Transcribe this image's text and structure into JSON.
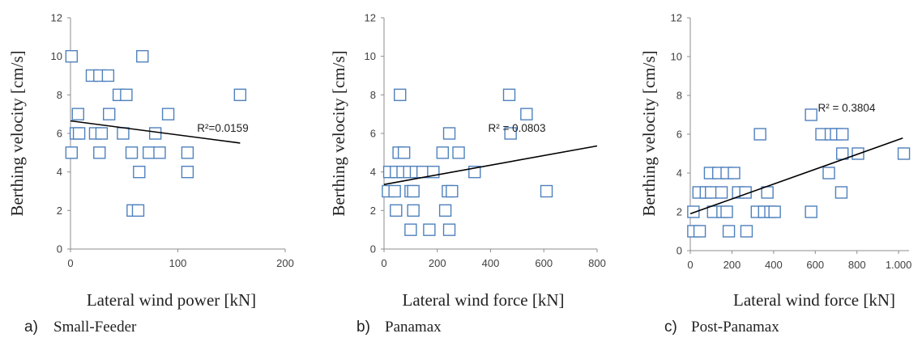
{
  "chart_data": [
    {
      "type": "scatter",
      "panel_letter": "a)",
      "caption": "Small-Feeder",
      "xlabel": "Lateral wind power [kN]",
      "ylabel": "Berthing velocity [cm/s]",
      "xlim": [
        0,
        200
      ],
      "ylim": [
        0,
        12
      ],
      "x_ticks": [
        "0",
        "100",
        "200"
      ],
      "y_ticks": [
        "0",
        "2",
        "4",
        "6",
        "8",
        "10",
        "12"
      ],
      "points": [
        {
          "x": 1,
          "y": 10
        },
        {
          "x": 67,
          "y": 10
        },
        {
          "x": 20,
          "y": 9
        },
        {
          "x": 27,
          "y": 9
        },
        {
          "x": 35,
          "y": 9
        },
        {
          "x": 45,
          "y": 8
        },
        {
          "x": 52,
          "y": 8
        },
        {
          "x": 158,
          "y": 8
        },
        {
          "x": 7,
          "y": 7
        },
        {
          "x": 36,
          "y": 7
        },
        {
          "x": 91,
          "y": 7
        },
        {
          "x": 5,
          "y": 6
        },
        {
          "x": 8,
          "y": 6
        },
        {
          "x": 23,
          "y": 6
        },
        {
          "x": 29,
          "y": 6
        },
        {
          "x": 49,
          "y": 6
        },
        {
          "x": 79,
          "y": 6
        },
        {
          "x": 1,
          "y": 5
        },
        {
          "x": 27,
          "y": 5
        },
        {
          "x": 57,
          "y": 5
        },
        {
          "x": 73,
          "y": 5
        },
        {
          "x": 83,
          "y": 5
        },
        {
          "x": 109,
          "y": 5
        },
        {
          "x": 64,
          "y": 4
        },
        {
          "x": 109,
          "y": 4
        },
        {
          "x": 58,
          "y": 2
        },
        {
          "x": 63,
          "y": 2
        }
      ],
      "trendline": {
        "x": [
          0,
          158
        ],
        "y": [
          6.65,
          5.5
        ]
      },
      "r2_label": "R²=0.0159"
    },
    {
      "type": "scatter",
      "panel_letter": "b)",
      "caption": "Panamax",
      "xlabel": "Lateral wind force [kN]",
      "ylabel": "Berthing velocity [cm/s]",
      "xlim": [
        0,
        800
      ],
      "ylim": [
        0,
        12
      ],
      "x_ticks": [
        "0",
        "200",
        "400",
        "600",
        "800"
      ],
      "y_ticks": [
        "0",
        "2",
        "4",
        "6",
        "8",
        "10",
        "12"
      ],
      "points": [
        {
          "x": 60,
          "y": 8
        },
        {
          "x": 470,
          "y": 8
        },
        {
          "x": 535,
          "y": 7
        },
        {
          "x": 245,
          "y": 6
        },
        {
          "x": 475,
          "y": 6
        },
        {
          "x": 55,
          "y": 5
        },
        {
          "x": 75,
          "y": 5
        },
        {
          "x": 220,
          "y": 5
        },
        {
          "x": 280,
          "y": 5
        },
        {
          "x": 20,
          "y": 4
        },
        {
          "x": 45,
          "y": 4
        },
        {
          "x": 70,
          "y": 4
        },
        {
          "x": 95,
          "y": 4
        },
        {
          "x": 120,
          "y": 4
        },
        {
          "x": 145,
          "y": 4
        },
        {
          "x": 185,
          "y": 4
        },
        {
          "x": 340,
          "y": 4
        },
        {
          "x": 15,
          "y": 3
        },
        {
          "x": 40,
          "y": 3
        },
        {
          "x": 100,
          "y": 3
        },
        {
          "x": 110,
          "y": 3
        },
        {
          "x": 240,
          "y": 3
        },
        {
          "x": 255,
          "y": 3
        },
        {
          "x": 610,
          "y": 3
        },
        {
          "x": 45,
          "y": 2
        },
        {
          "x": 110,
          "y": 2
        },
        {
          "x": 230,
          "y": 2
        },
        {
          "x": 100,
          "y": 1
        },
        {
          "x": 170,
          "y": 1
        },
        {
          "x": 245,
          "y": 1
        }
      ],
      "trendline": {
        "x": [
          0,
          800
        ],
        "y": [
          3.35,
          5.35
        ]
      },
      "r2_label": "R² = 0.0803"
    },
    {
      "type": "scatter",
      "panel_letter": "c)",
      "caption": "Post-Panamax",
      "xlabel": "Lateral wind force [kN]",
      "ylabel": "Berthing velocity [cm/s]",
      "xlim": [
        0,
        1050
      ],
      "ylim": [
        0,
        12
      ],
      "x_ticks": [
        "0",
        "200",
        "400",
        "600",
        "800",
        "1.000"
      ],
      "y_ticks": [
        "0",
        "2",
        "4",
        "6",
        "8",
        "10",
        "12"
      ],
      "points": [
        {
          "x": 580,
          "y": 7
        },
        {
          "x": 335,
          "y": 6
        },
        {
          "x": 630,
          "y": 6
        },
        {
          "x": 675,
          "y": 6
        },
        {
          "x": 700,
          "y": 6
        },
        {
          "x": 730,
          "y": 6
        },
        {
          "x": 730,
          "y": 5
        },
        {
          "x": 805,
          "y": 5
        },
        {
          "x": 1025,
          "y": 5
        },
        {
          "x": 95,
          "y": 4
        },
        {
          "x": 135,
          "y": 4
        },
        {
          "x": 175,
          "y": 4
        },
        {
          "x": 210,
          "y": 4
        },
        {
          "x": 665,
          "y": 4
        },
        {
          "x": 40,
          "y": 3
        },
        {
          "x": 75,
          "y": 3
        },
        {
          "x": 100,
          "y": 3
        },
        {
          "x": 150,
          "y": 3
        },
        {
          "x": 230,
          "y": 3
        },
        {
          "x": 265,
          "y": 3
        },
        {
          "x": 370,
          "y": 3
        },
        {
          "x": 725,
          "y": 3
        },
        {
          "x": 15,
          "y": 2
        },
        {
          "x": 110,
          "y": 2
        },
        {
          "x": 155,
          "y": 2
        },
        {
          "x": 175,
          "y": 2
        },
        {
          "x": 320,
          "y": 2
        },
        {
          "x": 355,
          "y": 2
        },
        {
          "x": 385,
          "y": 2
        },
        {
          "x": 405,
          "y": 2
        },
        {
          "x": 580,
          "y": 2
        },
        {
          "x": 15,
          "y": 1
        },
        {
          "x": 45,
          "y": 1
        },
        {
          "x": 185,
          "y": 1
        },
        {
          "x": 270,
          "y": 1
        }
      ],
      "trendline": {
        "x": [
          0,
          1020
        ],
        "y": [
          1.9,
          5.8
        ]
      },
      "r2_label": "R² = 0.3804"
    }
  ]
}
